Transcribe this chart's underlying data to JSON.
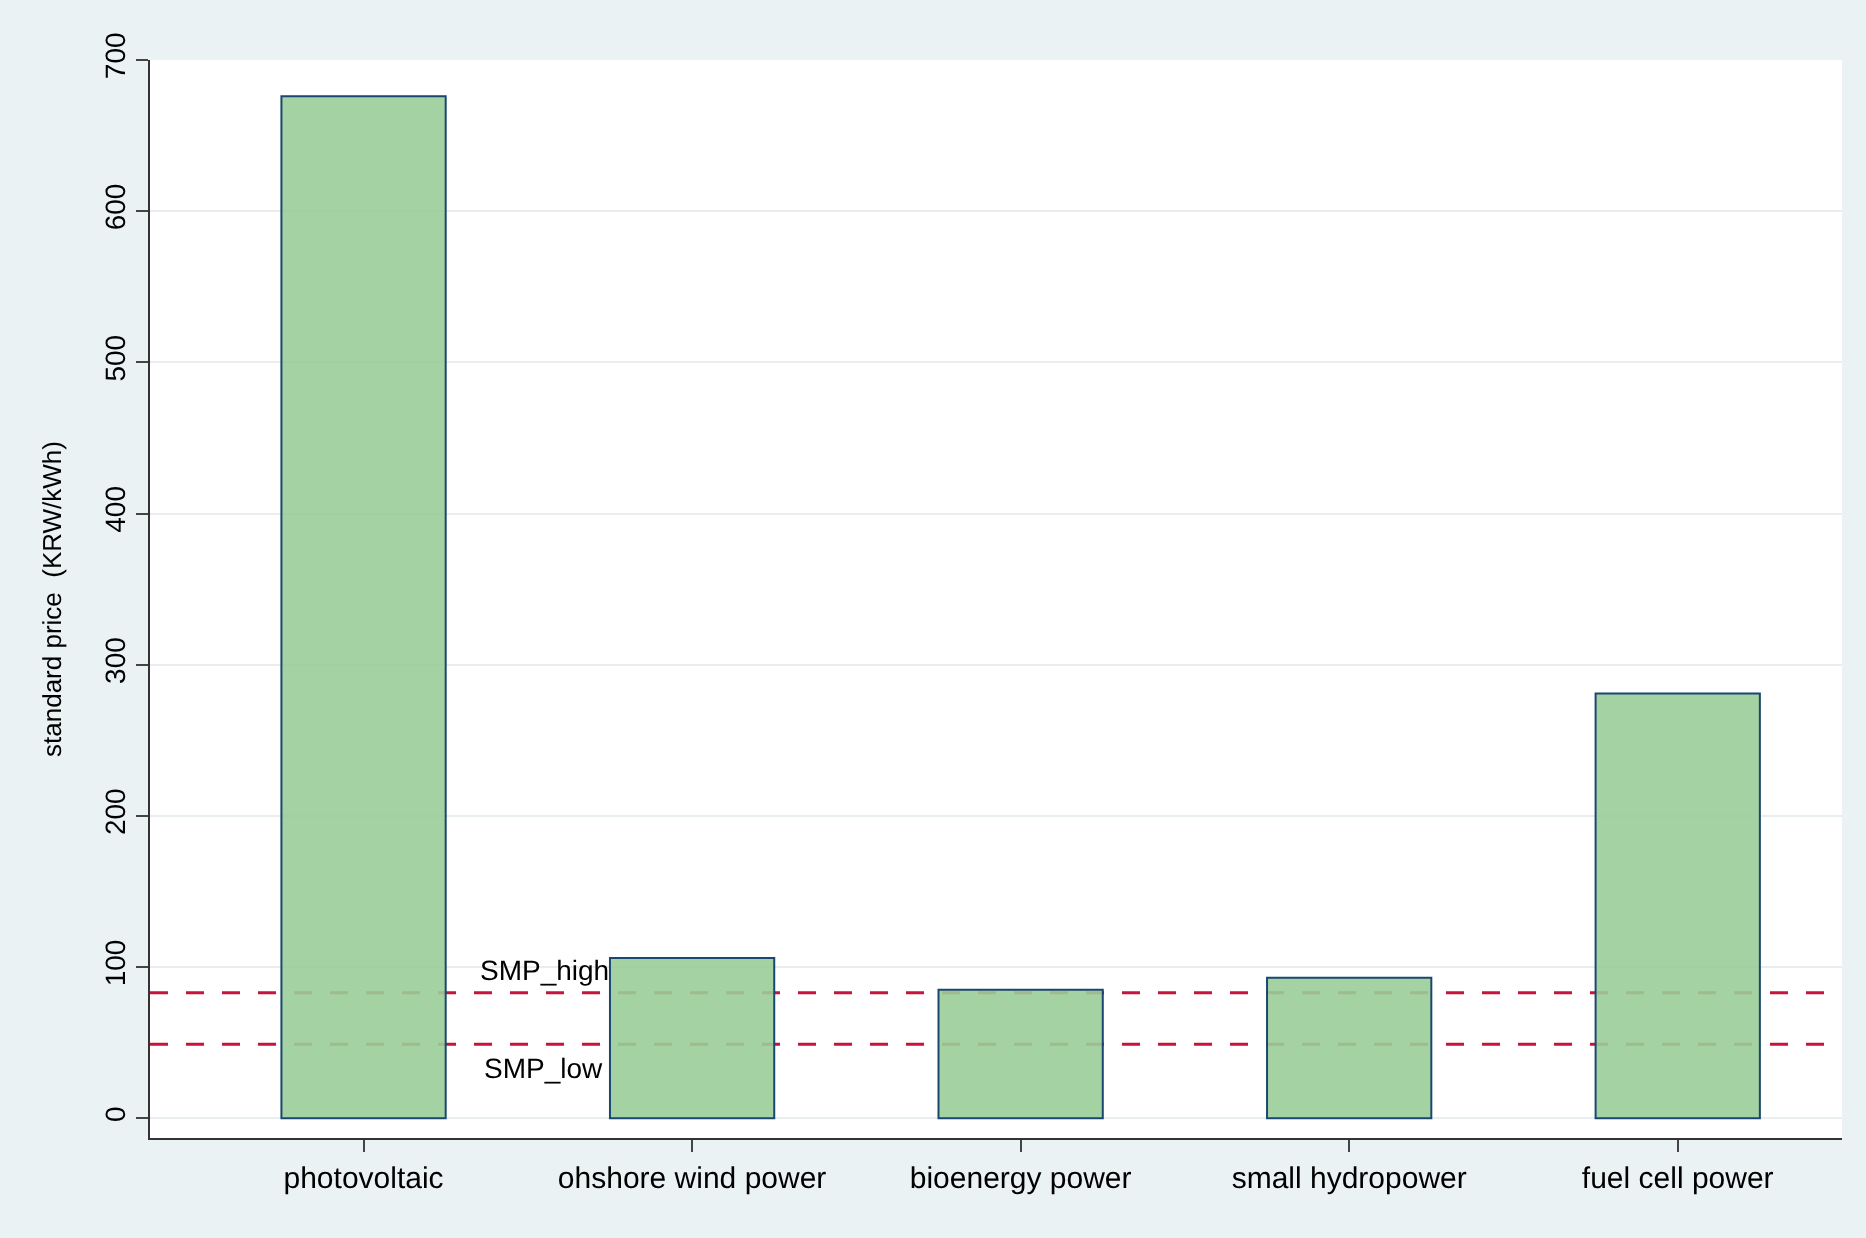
{
  "chart_data": {
    "type": "bar",
    "categories": [
      "photovoltaic",
      "ohshore wind power",
      "bioenergy power",
      "small hydropower",
      "fuel cell power"
    ],
    "values": [
      676,
      106,
      85,
      93,
      281
    ],
    "color": "#9acd98",
    "ylabel": "standard price  (KRW/kWh)",
    "ylim": [
      -13,
      700
    ],
    "yticks": [
      0,
      100,
      200,
      300,
      400,
      500,
      600,
      700
    ],
    "grid": "y",
    "ref_lines": [
      {
        "axis": "y",
        "value": 83,
        "label": "SMP_high",
        "color": "#c8143c",
        "line_style": "dashed"
      },
      {
        "axis": "y",
        "value": 49,
        "label": "SMP_low",
        "color": "#c8143c",
        "line_style": "dashed"
      }
    ]
  }
}
